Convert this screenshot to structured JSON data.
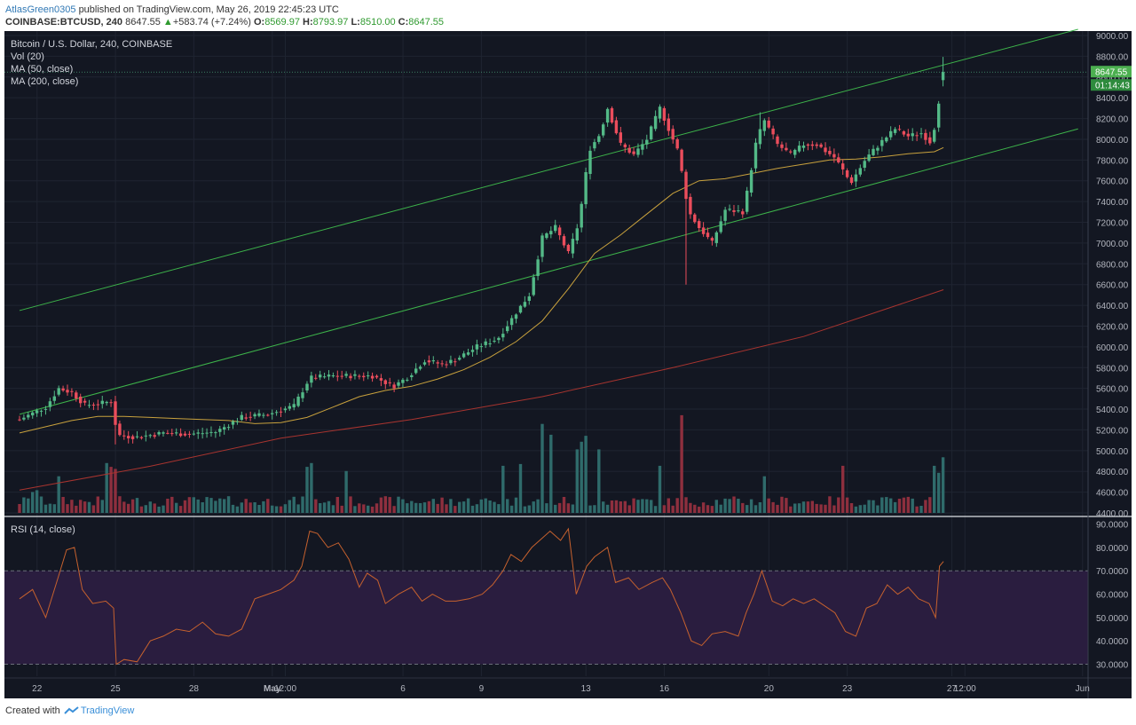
{
  "header": {
    "author": "AtlasGreen0305",
    "published": "published on TradingView.com, May 26, 2019 22:45:23 UTC",
    "symbol": "COINBASE:BTCUSD, 240",
    "last": "8647.55",
    "change": "+583.74 (+7.24%)",
    "o_label": "O:",
    "o_value": "8569.97",
    "h_label": "H:",
    "h_value": "8793.97",
    "l_label": "L:",
    "l_value": "8510.00",
    "c_label": "C:",
    "c_value": "8647.55"
  },
  "legend": {
    "title": "Bitcoin / U.S. Dollar, 240, COINBASE",
    "vol": "Vol (20)",
    "ma50": "MA (50, close)",
    "ma200": "MA (200, close)",
    "rsi": "RSI (14, close)"
  },
  "footer": {
    "created_with": "Created with",
    "brand": "TradingView"
  },
  "colors": {
    "background": "#131722",
    "rsi_band": "#2a1d3f",
    "up": "#53b987",
    "down": "#eb4d5c",
    "up_volume": "#2f6b6b",
    "down_volume": "#8e2f3e",
    "ma50": "#c8a13d",
    "ma200": "#a8342f",
    "channel": "#3db34a",
    "rsi_line": "#c6612e",
    "grid": "#1f2431",
    "label_green": "#4caf50"
  },
  "chart_data": {
    "type": "candlestick",
    "title": "Bitcoin / U.S. Dollar, 240, COINBASE",
    "timeframe": "240",
    "price_axis": {
      "ylim": [
        4400,
        9000
      ],
      "ticks": [
        "9000.00",
        "8800.00",
        "8600.00",
        "8400.00",
        "8200.00",
        "8000.00",
        "7800.00",
        "7600.00",
        "7400.00",
        "7200.00",
        "7000.00",
        "6800.00",
        "6600.00",
        "6400.00",
        "6200.00",
        "6000.00",
        "5800.00",
        "5600.00",
        "5400.00",
        "5200.00",
        "5000.00",
        "4800.00",
        "4600.00",
        "4400.00"
      ]
    },
    "time_axis": {
      "labels": [
        {
          "t": 0.67,
          "label": "22"
        },
        {
          "t": 3.67,
          "label": "25"
        },
        {
          "t": 6.67,
          "label": "28"
        },
        {
          "t": 9.67,
          "label": "May"
        },
        {
          "t": 10.17,
          "label": "12:00"
        },
        {
          "t": 14.67,
          "label": "6"
        },
        {
          "t": 17.67,
          "label": "9"
        },
        {
          "t": 21.67,
          "label": "13"
        },
        {
          "t": 24.67,
          "label": "16"
        },
        {
          "t": 28.67,
          "label": "20"
        },
        {
          "t": 31.67,
          "label": "23"
        },
        {
          "t": 35.67,
          "label": "27"
        },
        {
          "t": 36.17,
          "label": "12:00"
        },
        {
          "t": 40.67,
          "label": "Jun"
        }
      ]
    },
    "price_path": [
      {
        "t": 0,
        "p": 5300
      },
      {
        "t": 1,
        "p": 5420
      },
      {
        "t": 1.5,
        "p": 5600
      },
      {
        "t": 2,
        "p": 5560
      },
      {
        "t": 2.5,
        "p": 5440
      },
      {
        "t": 3,
        "p": 5450
      },
      {
        "t": 3.6,
        "p": 5480
      },
      {
        "t": 3.7,
        "p": 5150
      },
      {
        "t": 4.5,
        "p": 5130
      },
      {
        "t": 5.5,
        "p": 5170
      },
      {
        "t": 6.5,
        "p": 5160
      },
      {
        "t": 7.5,
        "p": 5180
      },
      {
        "t": 8.5,
        "p": 5320
      },
      {
        "t": 9.5,
        "p": 5350
      },
      {
        "t": 10.5,
        "p": 5430
      },
      {
        "t": 11.1,
        "p": 5700
      },
      {
        "t": 12,
        "p": 5720
      },
      {
        "t": 12.8,
        "p": 5720
      },
      {
        "t": 13.5,
        "p": 5720
      },
      {
        "t": 14.3,
        "p": 5620
      },
      {
        "t": 14.8,
        "p": 5700
      },
      {
        "t": 15.5,
        "p": 5870
      },
      {
        "t": 16.2,
        "p": 5830
      },
      {
        "t": 16.7,
        "p": 5880
      },
      {
        "t": 17.5,
        "p": 6000
      },
      {
        "t": 18.3,
        "p": 6080
      },
      {
        "t": 19,
        "p": 6330
      },
      {
        "t": 19.5,
        "p": 6500
      },
      {
        "t": 20,
        "p": 7050
      },
      {
        "t": 20.5,
        "p": 7150
      },
      {
        "t": 21,
        "p": 6900
      },
      {
        "t": 21.4,
        "p": 7200
      },
      {
        "t": 21.8,
        "p": 7900
      },
      {
        "t": 22.2,
        "p": 8050
      },
      {
        "t": 22.5,
        "p": 8300
      },
      {
        "t": 23,
        "p": 7950
      },
      {
        "t": 23.5,
        "p": 7850
      },
      {
        "t": 24,
        "p": 8000
      },
      {
        "t": 24.5,
        "p": 8300
      },
      {
        "t": 25.2,
        "p": 7880
      },
      {
        "t": 25.6,
        "p": 7300
      },
      {
        "t": 26,
        "p": 7150
      },
      {
        "t": 26.5,
        "p": 7000
      },
      {
        "t": 27,
        "p": 7320
      },
      {
        "t": 27.7,
        "p": 7300
      },
      {
        "t": 28.2,
        "p": 8000
      },
      {
        "t": 28.5,
        "p": 8180
      },
      {
        "t": 29,
        "p": 7950
      },
      {
        "t": 29.5,
        "p": 7850
      },
      {
        "t": 30,
        "p": 7950
      },
      {
        "t": 30.5,
        "p": 7950
      },
      {
        "t": 31.2,
        "p": 7820
      },
      {
        "t": 31.8,
        "p": 7580
      },
      {
        "t": 32.4,
        "p": 7820
      },
      {
        "t": 33,
        "p": 7980
      },
      {
        "t": 33.5,
        "p": 8100
      },
      {
        "t": 34,
        "p": 8030
      },
      {
        "t": 34.5,
        "p": 8060
      },
      {
        "t": 34.9,
        "p": 7960
      },
      {
        "t": 35.35,
        "p": 8647.55
      }
    ],
    "last_candle": {
      "o": 8569.97,
      "h": 8793.97,
      "l": 8510.0,
      "c": 8647.55
    },
    "last_price_label": "8647.55",
    "countdown_label": "01:14:43",
    "ma50": [
      {
        "t": 0,
        "p": 5170
      },
      {
        "t": 1,
        "p": 5230
      },
      {
        "t": 2,
        "p": 5290
      },
      {
        "t": 3,
        "p": 5330
      },
      {
        "t": 4,
        "p": 5330
      },
      {
        "t": 5,
        "p": 5320
      },
      {
        "t": 6,
        "p": 5310
      },
      {
        "t": 7,
        "p": 5300
      },
      {
        "t": 8,
        "p": 5290
      },
      {
        "t": 9,
        "p": 5260
      },
      {
        "t": 10,
        "p": 5270
      },
      {
        "t": 11,
        "p": 5320
      },
      {
        "t": 12,
        "p": 5420
      },
      {
        "t": 13,
        "p": 5520
      },
      {
        "t": 14,
        "p": 5580
      },
      {
        "t": 15,
        "p": 5620
      },
      {
        "t": 16,
        "p": 5690
      },
      {
        "t": 17,
        "p": 5780
      },
      {
        "t": 18,
        "p": 5900
      },
      {
        "t": 19,
        "p": 6050
      },
      {
        "t": 20,
        "p": 6250
      },
      {
        "t": 21,
        "p": 6560
      },
      {
        "t": 22,
        "p": 6900
      },
      {
        "t": 23,
        "p": 7080
      },
      {
        "t": 24,
        "p": 7280
      },
      {
        "t": 25,
        "p": 7480
      },
      {
        "t": 26,
        "p": 7600
      },
      {
        "t": 27,
        "p": 7620
      },
      {
        "t": 28,
        "p": 7670
      },
      {
        "t": 29,
        "p": 7720
      },
      {
        "t": 30,
        "p": 7760
      },
      {
        "t": 31,
        "p": 7800
      },
      {
        "t": 32,
        "p": 7810
      },
      {
        "t": 33,
        "p": 7830
      },
      {
        "t": 34,
        "p": 7860
      },
      {
        "t": 35,
        "p": 7880
      },
      {
        "t": 35.35,
        "p": 7920
      }
    ],
    "ma200": [
      {
        "t": 0,
        "p": 4620
      },
      {
        "t": 5,
        "p": 4850
      },
      {
        "t": 10,
        "p": 5120
      },
      {
        "t": 15,
        "p": 5300
      },
      {
        "t": 20,
        "p": 5520
      },
      {
        "t": 25,
        "p": 5800
      },
      {
        "t": 30,
        "p": 6100
      },
      {
        "t": 35.35,
        "p": 6550
      }
    ],
    "channel_lines": [
      {
        "name": "upper",
        "points": [
          {
            "t": 0,
            "p": 6350
          },
          {
            "t": 40.5,
            "p": 9060
          }
        ]
      },
      {
        "name": "lower",
        "points": [
          {
            "t": 0,
            "p": 5350
          },
          {
            "t": 40.5,
            "p": 8100
          }
        ]
      }
    ],
    "volume": [
      {
        "t": 0.6,
        "v": 0.25
      },
      {
        "t": 1.5,
        "v": 0.35
      },
      {
        "t": 3.4,
        "v": 0.55
      },
      {
        "t": 3.7,
        "v": 0.45
      },
      {
        "t": 11.1,
        "v": 0.55
      },
      {
        "t": 12.5,
        "v": 0.4
      },
      {
        "t": 18.5,
        "v": 0.45
      },
      {
        "t": 19.2,
        "v": 0.5
      },
      {
        "t": 20,
        "v": 0.85
      },
      {
        "t": 20.3,
        "v": 0.8
      },
      {
        "t": 21.3,
        "v": 0.65
      },
      {
        "t": 21.6,
        "v": 0.85
      },
      {
        "t": 22.2,
        "v": 0.65
      },
      {
        "t": 24.5,
        "v": 0.45
      },
      {
        "t": 25.3,
        "v": 1.0
      },
      {
        "t": 28.5,
        "v": 0.35
      },
      {
        "t": 31.5,
        "v": 0.45
      },
      {
        "t": 35.05,
        "v": 0.5
      },
      {
        "t": 35.35,
        "v": 0.55
      }
    ],
    "rsi": {
      "title": "RSI (14, close)",
      "ylim": [
        26,
        91
      ],
      "ticks": [
        "90.0000",
        "80.0000",
        "70.0000",
        "60.0000",
        "50.0000",
        "40.0000",
        "30.0000"
      ],
      "band": [
        30,
        70
      ],
      "points": [
        {
          "t": 0,
          "v": 58
        },
        {
          "t": 0.5,
          "v": 62
        },
        {
          "t": 1,
          "v": 50
        },
        {
          "t": 1.5,
          "v": 68
        },
        {
          "t": 1.8,
          "v": 79
        },
        {
          "t": 2.1,
          "v": 80
        },
        {
          "t": 2.4,
          "v": 62
        },
        {
          "t": 2.8,
          "v": 56
        },
        {
          "t": 3.3,
          "v": 57
        },
        {
          "t": 3.6,
          "v": 54
        },
        {
          "t": 3.7,
          "v": 30
        },
        {
          "t": 4,
          "v": 32
        },
        {
          "t": 4.5,
          "v": 31
        },
        {
          "t": 5,
          "v": 40
        },
        {
          "t": 5.5,
          "v": 42
        },
        {
          "t": 6,
          "v": 45
        },
        {
          "t": 6.5,
          "v": 44
        },
        {
          "t": 7,
          "v": 48
        },
        {
          "t": 7.5,
          "v": 43
        },
        {
          "t": 8,
          "v": 42
        },
        {
          "t": 8.5,
          "v": 45
        },
        {
          "t": 9,
          "v": 58
        },
        {
          "t": 9.5,
          "v": 60
        },
        {
          "t": 10,
          "v": 62
        },
        {
          "t": 10.5,
          "v": 66
        },
        {
          "t": 10.8,
          "v": 72
        },
        {
          "t": 11.1,
          "v": 87
        },
        {
          "t": 11.4,
          "v": 86
        },
        {
          "t": 11.8,
          "v": 80
        },
        {
          "t": 12.2,
          "v": 82
        },
        {
          "t": 12.6,
          "v": 75
        },
        {
          "t": 13,
          "v": 63
        },
        {
          "t": 13.3,
          "v": 69
        },
        {
          "t": 13.7,
          "v": 66
        },
        {
          "t": 14,
          "v": 56
        },
        {
          "t": 14.5,
          "v": 60
        },
        {
          "t": 15,
          "v": 63
        },
        {
          "t": 15.4,
          "v": 57
        },
        {
          "t": 15.8,
          "v": 60
        },
        {
          "t": 16.3,
          "v": 57
        },
        {
          "t": 16.7,
          "v": 57
        },
        {
          "t": 17.2,
          "v": 58
        },
        {
          "t": 17.7,
          "v": 60
        },
        {
          "t": 18.1,
          "v": 64
        },
        {
          "t": 18.5,
          "v": 70
        },
        {
          "t": 18.8,
          "v": 77
        },
        {
          "t": 19.2,
          "v": 74
        },
        {
          "t": 19.6,
          "v": 80
        },
        {
          "t": 20,
          "v": 84
        },
        {
          "t": 20.3,
          "v": 87
        },
        {
          "t": 20.7,
          "v": 83
        },
        {
          "t": 21,
          "v": 88
        },
        {
          "t": 21.3,
          "v": 60
        },
        {
          "t": 21.7,
          "v": 72
        },
        {
          "t": 22,
          "v": 76
        },
        {
          "t": 22.5,
          "v": 80
        },
        {
          "t": 22.8,
          "v": 65
        },
        {
          "t": 23.3,
          "v": 67
        },
        {
          "t": 23.7,
          "v": 62
        },
        {
          "t": 24.2,
          "v": 65
        },
        {
          "t": 24.6,
          "v": 67
        },
        {
          "t": 24.9,
          "v": 62
        },
        {
          "t": 25.3,
          "v": 52
        },
        {
          "t": 25.7,
          "v": 40
        },
        {
          "t": 26.1,
          "v": 38
        },
        {
          "t": 26.5,
          "v": 43
        },
        {
          "t": 27,
          "v": 44
        },
        {
          "t": 27.5,
          "v": 42
        },
        {
          "t": 27.8,
          "v": 52
        },
        {
          "t": 28.1,
          "v": 60
        },
        {
          "t": 28.4,
          "v": 70
        },
        {
          "t": 28.8,
          "v": 57
        },
        {
          "t": 29.2,
          "v": 55
        },
        {
          "t": 29.6,
          "v": 58
        },
        {
          "t": 30,
          "v": 56
        },
        {
          "t": 30.4,
          "v": 58
        },
        {
          "t": 30.8,
          "v": 55
        },
        {
          "t": 31.2,
          "v": 52
        },
        {
          "t": 31.6,
          "v": 44
        },
        {
          "t": 32,
          "v": 42
        },
        {
          "t": 32.4,
          "v": 54
        },
        {
          "t": 32.8,
          "v": 56
        },
        {
          "t": 33.2,
          "v": 64
        },
        {
          "t": 33.6,
          "v": 60
        },
        {
          "t": 34,
          "v": 63
        },
        {
          "t": 34.4,
          "v": 58
        },
        {
          "t": 34.8,
          "v": 56
        },
        {
          "t": 35.05,
          "v": 50
        },
        {
          "t": 35.2,
          "v": 72
        },
        {
          "t": 35.35,
          "v": 74
        }
      ]
    }
  }
}
